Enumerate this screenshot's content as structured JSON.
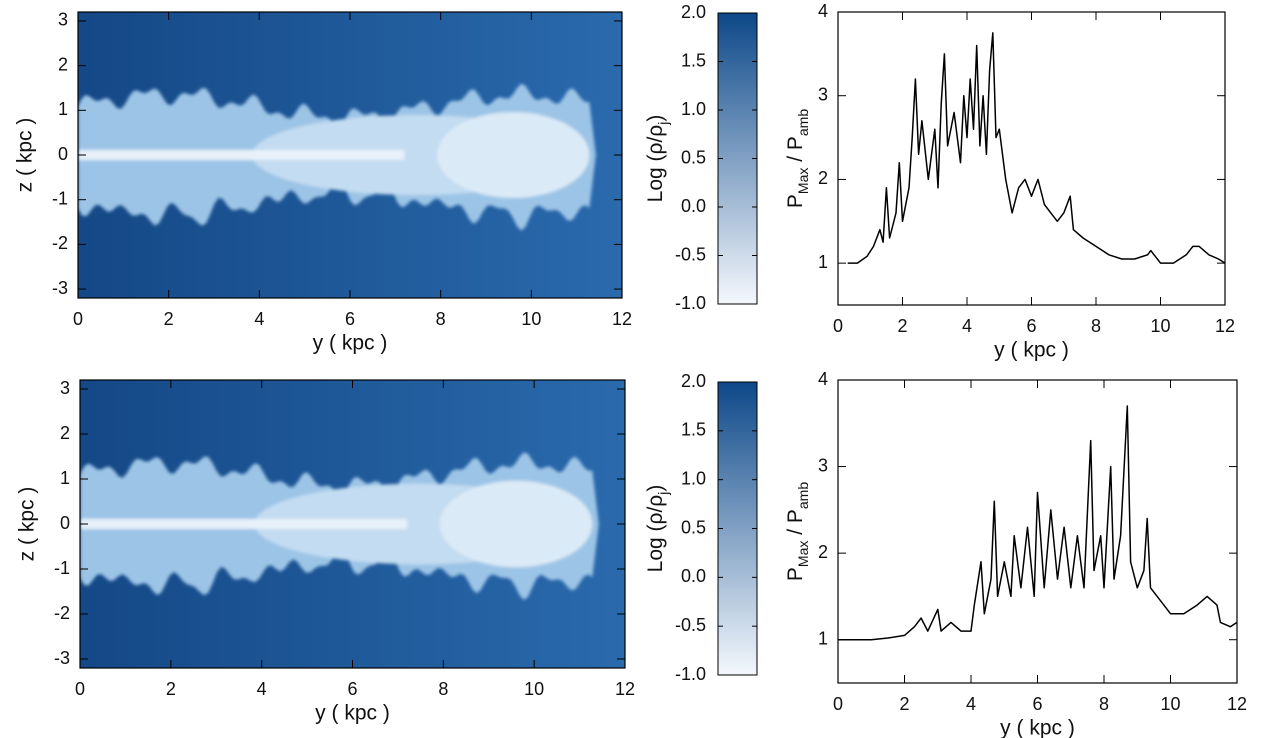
{
  "chart_data": [
    {
      "type": "heatmap",
      "xlabel": "y ( kpc )",
      "ylabel": "z ( kpc )",
      "xlim": [
        0,
        12
      ],
      "ylim": [
        -3.2,
        3.2
      ],
      "xticks": [
        0,
        2,
        4,
        6,
        8,
        10,
        12
      ],
      "yticks": [
        -3,
        -2,
        -1,
        0,
        1,
        2,
        3
      ],
      "colorbar": {
        "lim": [
          -1,
          2
        ],
        "colors": [
          "#f4f8fd",
          "#0d4889"
        ],
        "ticks": [
          {
            "value": -1,
            "label": "-1.0"
          },
          {
            "value": -0.5,
            "label": "-0.5"
          },
          {
            "value": 0,
            "label": "0.0"
          },
          {
            "value": 0.5,
            "label": "0.5"
          },
          {
            "value": 1,
            "label": "1.0"
          },
          {
            "value": 1.5,
            "label": "1.5"
          },
          {
            "value": 2,
            "label": "2.0"
          }
        ],
        "label_parts": [
          "Log (",
          "ρ/ρ",
          "j",
          ")"
        ]
      }
    },
    {
      "type": "line",
      "xlabel": "y ( kpc )",
      "ylabel_parts": [
        "P",
        "Max",
        " / P",
        "amb"
      ],
      "color": "#000000",
      "xlim": [
        0,
        12
      ],
      "ylim": [
        0.5,
        4
      ],
      "xticks": [
        0,
        2,
        4,
        6,
        8,
        10,
        12
      ],
      "yticks": [
        1,
        2,
        3,
        4
      ],
      "x": [
        0.3,
        0.6,
        0.9,
        1.1,
        1.3,
        1.4,
        1.5,
        1.6,
        1.8,
        1.9,
        2.0,
        2.2,
        2.3,
        2.4,
        2.5,
        2.6,
        2.8,
        3.0,
        3.1,
        3.2,
        3.3,
        3.4,
        3.6,
        3.8,
        3.9,
        4.0,
        4.1,
        4.2,
        4.3,
        4.4,
        4.5,
        4.6,
        4.7,
        4.8,
        4.9,
        5.0,
        5.2,
        5.4,
        5.6,
        5.8,
        6.0,
        6.2,
        6.4,
        6.6,
        6.8,
        7.0,
        7.2,
        7.3,
        7.6,
        8.0,
        8.4,
        8.8,
        9.2,
        9.6,
        9.7,
        10.0,
        10.4,
        10.8,
        11.0,
        11.2,
        11.5,
        11.8,
        12.0
      ],
      "values": [
        1.0,
        1.0,
        1.08,
        1.2,
        1.4,
        1.25,
        1.9,
        1.3,
        1.6,
        2.2,
        1.5,
        1.9,
        2.5,
        3.2,
        2.3,
        2.7,
        2.0,
        2.6,
        1.9,
        2.9,
        3.5,
        2.4,
        2.8,
        2.2,
        3.0,
        2.5,
        3.2,
        2.6,
        3.6,
        2.4,
        3.0,
        2.3,
        3.3,
        3.75,
        2.5,
        2.6,
        2.0,
        1.6,
        1.9,
        2.0,
        1.8,
        2.0,
        1.7,
        1.6,
        1.5,
        1.6,
        1.8,
        1.4,
        1.3,
        1.2,
        1.1,
        1.05,
        1.05,
        1.1,
        1.15,
        1.0,
        1.0,
        1.1,
        1.2,
        1.2,
        1.1,
        1.05,
        1.0
      ]
    },
    {
      "type": "heatmap",
      "xlabel": "y ( kpc )",
      "ylabel": "z ( kpc )",
      "xlim": [
        0,
        12
      ],
      "ylim": [
        -3.2,
        3.2
      ],
      "xticks": [
        0,
        2,
        4,
        6,
        8,
        10,
        12
      ],
      "yticks": [
        -3,
        -2,
        -1,
        0,
        1,
        2,
        3
      ],
      "colorbar": {
        "lim": [
          -1,
          2
        ],
        "colors": [
          "#f4f8fd",
          "#0d4889"
        ],
        "ticks": [
          {
            "value": -1,
            "label": "-1.0"
          },
          {
            "value": -0.5,
            "label": "-0.5"
          },
          {
            "value": 0,
            "label": "0.0"
          },
          {
            "value": 0.5,
            "label": "0.5"
          },
          {
            "value": 1,
            "label": "1.0"
          },
          {
            "value": 1.5,
            "label": "1.5"
          },
          {
            "value": 2,
            "label": "2.0"
          }
        ],
        "label_parts": [
          "Log (",
          "ρ/ρ",
          "j",
          ")"
        ]
      }
    },
    {
      "type": "line",
      "xlabel": "y ( kpc )",
      "ylabel_parts": [
        "P",
        "Max",
        " / P",
        "amb"
      ],
      "color": "#000000",
      "xlim": [
        0,
        12
      ],
      "ylim": [
        0.5,
        4
      ],
      "xticks": [
        0,
        2,
        4,
        6,
        8,
        10,
        12
      ],
      "yticks": [
        1,
        2,
        3,
        4
      ],
      "x": [
        0,
        0.5,
        1.0,
        1.5,
        2.0,
        2.3,
        2.5,
        2.7,
        3.0,
        3.1,
        3.4,
        3.7,
        4.0,
        4.1,
        4.3,
        4.4,
        4.6,
        4.7,
        4.8,
        5.0,
        5.2,
        5.3,
        5.5,
        5.7,
        5.9,
        6.0,
        6.2,
        6.4,
        6.6,
        6.8,
        7.0,
        7.2,
        7.4,
        7.6,
        7.7,
        7.9,
        8.0,
        8.2,
        8.3,
        8.5,
        8.7,
        8.8,
        9.0,
        9.2,
        9.3,
        9.4,
        9.6,
        10.0,
        10.4,
        10.8,
        11.1,
        11.4,
        11.5,
        11.8,
        12.0
      ],
      "values": [
        1.0,
        1.0,
        1.0,
        1.02,
        1.05,
        1.15,
        1.25,
        1.1,
        1.35,
        1.1,
        1.2,
        1.1,
        1.1,
        1.4,
        1.9,
        1.3,
        1.7,
        2.6,
        1.5,
        1.9,
        1.5,
        2.2,
        1.6,
        2.3,
        1.5,
        2.7,
        1.6,
        2.5,
        1.7,
        2.3,
        1.6,
        2.2,
        1.6,
        3.3,
        1.8,
        2.2,
        1.6,
        3.0,
        1.7,
        2.2,
        3.7,
        1.9,
        1.6,
        1.8,
        2.4,
        1.6,
        1.5,
        1.3,
        1.3,
        1.4,
        1.5,
        1.4,
        1.2,
        1.15,
        1.2
      ]
    }
  ]
}
